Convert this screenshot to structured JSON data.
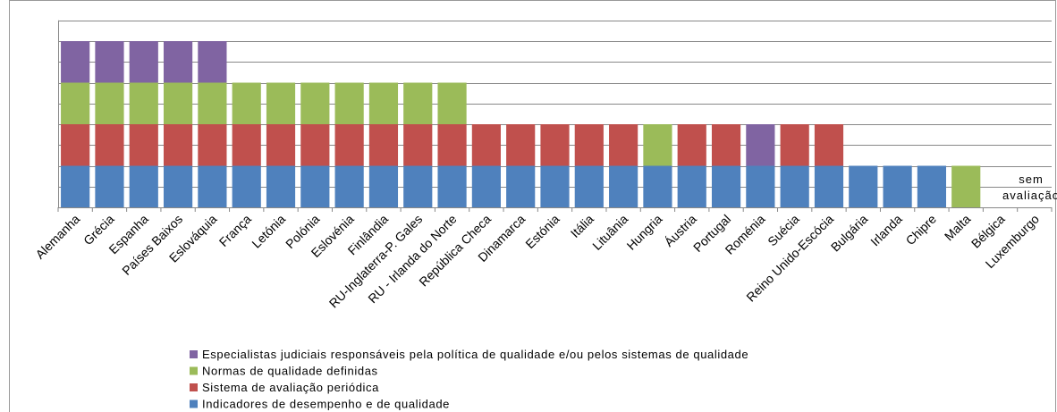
{
  "chart_data": {
    "type": "stacked_bar",
    "categories": [
      "Alemanha",
      "Grécia",
      "Espanha",
      "Países Baixos",
      "Eslováquia",
      "França",
      "Letónia",
      "Polónia",
      "Eslovénia",
      "Finlândia",
      "RU-Inglaterra-P. Gales",
      "RU - Irlanda do Norte",
      "República Checa",
      "Dinamarca",
      "Estónia",
      "Itália",
      "Lituânia",
      "Hungria",
      "Áustria",
      "Portugal",
      "Roménia",
      "Suécia",
      "Reino Unido-Escócia",
      "Bulgária",
      "Irlanda",
      "Chipre",
      "Malta",
      "Bélgica",
      "Luxemburgo"
    ],
    "series": [
      {
        "name": "Indicadores de desempenho e de qualidade",
        "color": "#4f81bd",
        "values": [
          1,
          1,
          1,
          1,
          1,
          1,
          1,
          1,
          1,
          1,
          1,
          1,
          1,
          1,
          1,
          1,
          1,
          1,
          1,
          1,
          1,
          1,
          1,
          1,
          1,
          1,
          0,
          null,
          null
        ]
      },
      {
        "name": "Sistema de avaliação periódica",
        "color": "#c0504d",
        "values": [
          1,
          1,
          1,
          1,
          1,
          1,
          1,
          1,
          1,
          1,
          1,
          1,
          1,
          1,
          1,
          1,
          1,
          0,
          1,
          1,
          0,
          1,
          1,
          0,
          0,
          0,
          0,
          null,
          null
        ]
      },
      {
        "name": "Normas de qualidade definidas",
        "color": "#9bbb59",
        "values": [
          1,
          1,
          1,
          1,
          1,
          1,
          1,
          1,
          1,
          1,
          1,
          1,
          0,
          0,
          0,
          0,
          0,
          1,
          0,
          0,
          0,
          0,
          0,
          0,
          0,
          0,
          1,
          null,
          null
        ]
      },
      {
        "name": "Especialistas judiciais responsáveis pela política de qualidade e/ou pelos sistemas de qualidade",
        "color": "#8064a2",
        "values": [
          1,
          1,
          1,
          1,
          1,
          0,
          0,
          0,
          0,
          0,
          0,
          0,
          0,
          0,
          0,
          0,
          0,
          0,
          0,
          0,
          1,
          0,
          0,
          0,
          0,
          0,
          0,
          null,
          null
        ]
      }
    ],
    "annotation": [
      "sem",
      "avaliação"
    ],
    "ylim": [
      0,
      4.5
    ],
    "yticks": [
      0,
      0.5,
      1,
      1.5,
      2,
      2.5,
      3,
      3.5,
      4,
      4.5
    ],
    "grid": true
  }
}
